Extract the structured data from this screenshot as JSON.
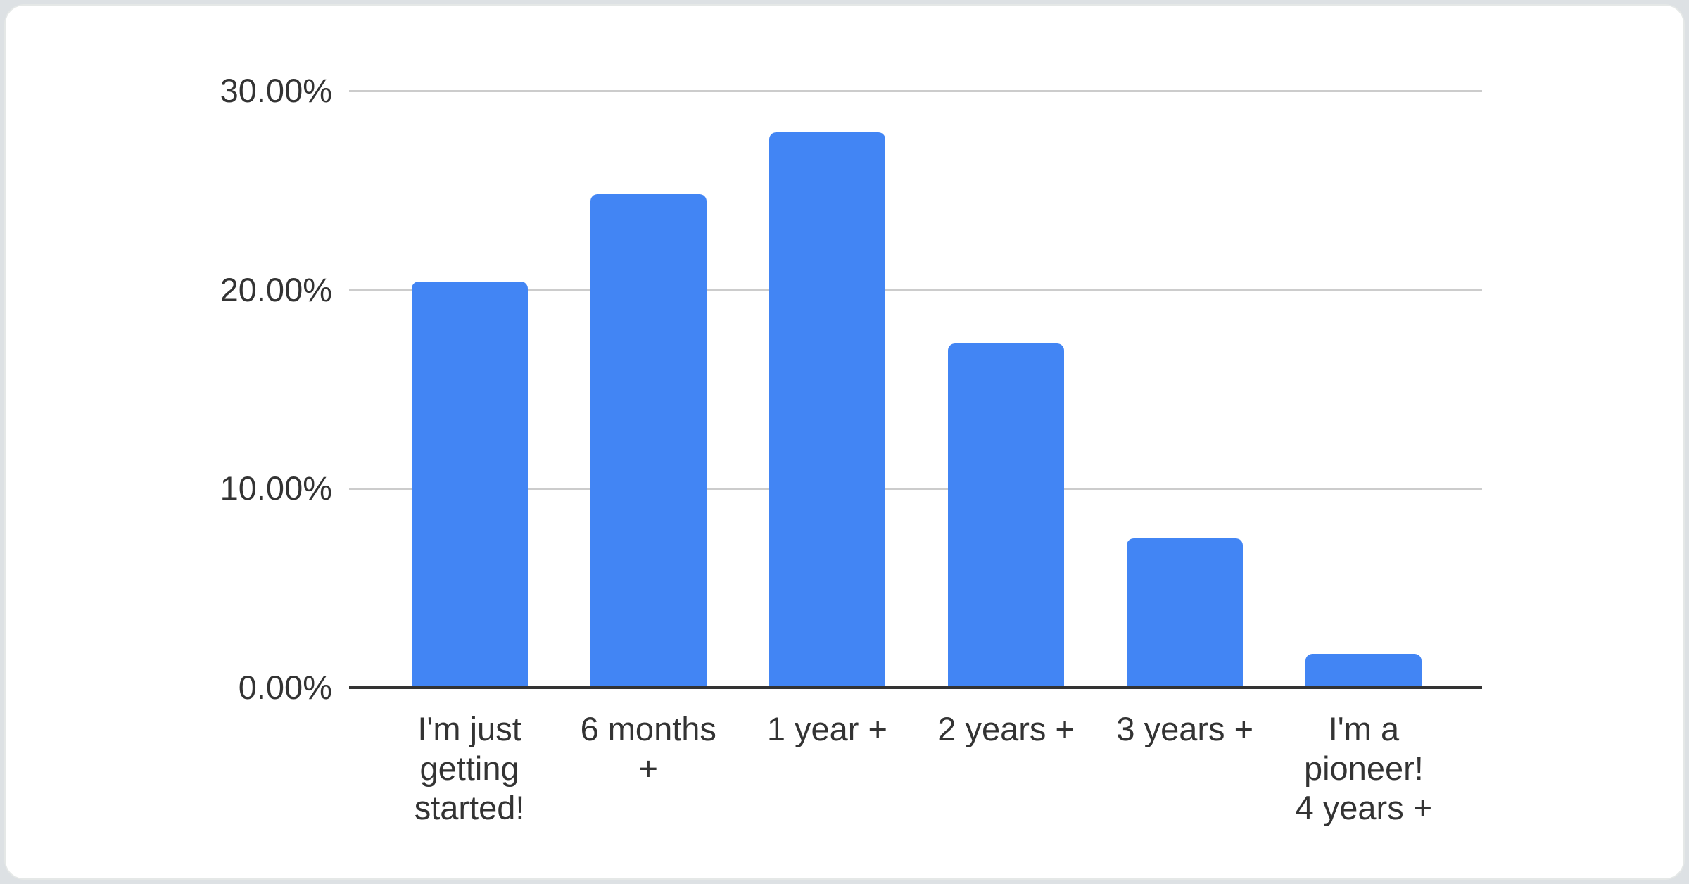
{
  "page": {
    "background_color": "#dde1e4",
    "card_color": "#ffffff"
  },
  "chart_data": {
    "type": "bar",
    "title": "",
    "xlabel": "",
    "ylabel": "",
    "categories": [
      "I'm just getting started!",
      "6 months +",
      "1 year +",
      "2 years +",
      "3 years +",
      "I'm a pioneer! 4 years +"
    ],
    "category_lines": [
      [
        "I'm just",
        "getting",
        "started!"
      ],
      [
        "6 months",
        "+"
      ],
      [
        "1 year +"
      ],
      [
        "2 years +"
      ],
      [
        "3 years +"
      ],
      [
        "I'm a",
        "pioneer!",
        "4 years +"
      ]
    ],
    "values": [
      20.4,
      24.8,
      27.9,
      17.3,
      7.5,
      1.7
    ],
    "unit": "%",
    "ylim": [
      0,
      30
    ],
    "yticks": [
      {
        "value": 0,
        "label": "0.00%"
      },
      {
        "value": 10,
        "label": "10.00%"
      },
      {
        "value": 20,
        "label": "20.00%"
      },
      {
        "value": 30,
        "label": "30.00%"
      }
    ],
    "grid": true,
    "legend_position": "none",
    "bar_color": "#4285f4",
    "gridline_color": "#cccccc",
    "axis_line_color": "#333333",
    "label_color": "#333333"
  }
}
